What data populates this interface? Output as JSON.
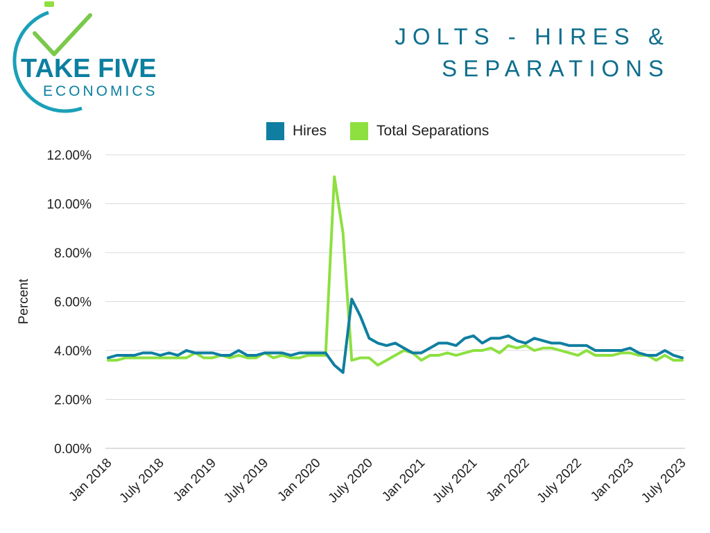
{
  "logo": {
    "main": "TAKE FIVE",
    "sub": "ECONOMICS"
  },
  "colors": {
    "hires": "#0f7ea0",
    "separations": "#8de040",
    "title": "#0d6e8c",
    "logo": "#0b7fa0"
  },
  "chart_data": {
    "type": "line",
    "title": "JOLTS - HIRES & SEPARATIONS",
    "xlabel": "",
    "ylabel": "Percent",
    "ylim": [
      0,
      12
    ],
    "yticks": [
      "0.00%",
      "2.00%",
      "4.00%",
      "6.00%",
      "8.00%",
      "10.00%",
      "12.00%"
    ],
    "x_tick_labels": [
      "Jan 2018",
      "July 2018",
      "Jan 2019",
      "July 2019",
      "Jan 2020",
      "July 2020",
      "Jan 2021",
      "July 2021",
      "Jan 2022",
      "July 2022",
      "Jan 2023",
      "July 2023"
    ],
    "x_start": "Jan 2018",
    "x_end": "July 2023",
    "grid": true,
    "legend_position": "top",
    "series": [
      {
        "name": "Hires",
        "values": [
          3.7,
          3.8,
          3.8,
          3.8,
          3.9,
          3.9,
          3.8,
          3.9,
          3.8,
          4.0,
          3.9,
          3.9,
          3.9,
          3.8,
          3.8,
          4.0,
          3.8,
          3.8,
          3.9,
          3.9,
          3.9,
          3.8,
          3.9,
          3.9,
          3.9,
          3.9,
          3.4,
          3.1,
          6.1,
          5.4,
          4.5,
          4.3,
          4.2,
          4.3,
          4.1,
          3.9,
          3.9,
          4.1,
          4.3,
          4.3,
          4.2,
          4.5,
          4.6,
          4.3,
          4.5,
          4.5,
          4.6,
          4.4,
          4.3,
          4.5,
          4.4,
          4.3,
          4.3,
          4.2,
          4.2,
          4.2,
          4.0,
          4.0,
          4.0,
          4.0,
          4.1,
          3.9,
          3.8,
          3.8,
          4.0,
          3.8,
          3.7
        ]
      },
      {
        "name": "Total Separations",
        "values": [
          3.6,
          3.6,
          3.7,
          3.7,
          3.7,
          3.7,
          3.7,
          3.7,
          3.7,
          3.7,
          3.9,
          3.7,
          3.7,
          3.8,
          3.7,
          3.8,
          3.7,
          3.7,
          3.9,
          3.7,
          3.8,
          3.7,
          3.7,
          3.8,
          3.8,
          3.8,
          11.1,
          8.8,
          3.6,
          3.7,
          3.7,
          3.4,
          3.6,
          3.8,
          4.0,
          3.9,
          3.6,
          3.8,
          3.8,
          3.9,
          3.8,
          3.9,
          4.0,
          4.0,
          4.1,
          3.9,
          4.2,
          4.1,
          4.2,
          4.0,
          4.1,
          4.1,
          4.0,
          3.9,
          3.8,
          4.0,
          3.8,
          3.8,
          3.8,
          3.9,
          3.9,
          3.8,
          3.8,
          3.6,
          3.8,
          3.6,
          3.6
        ]
      }
    ]
  }
}
